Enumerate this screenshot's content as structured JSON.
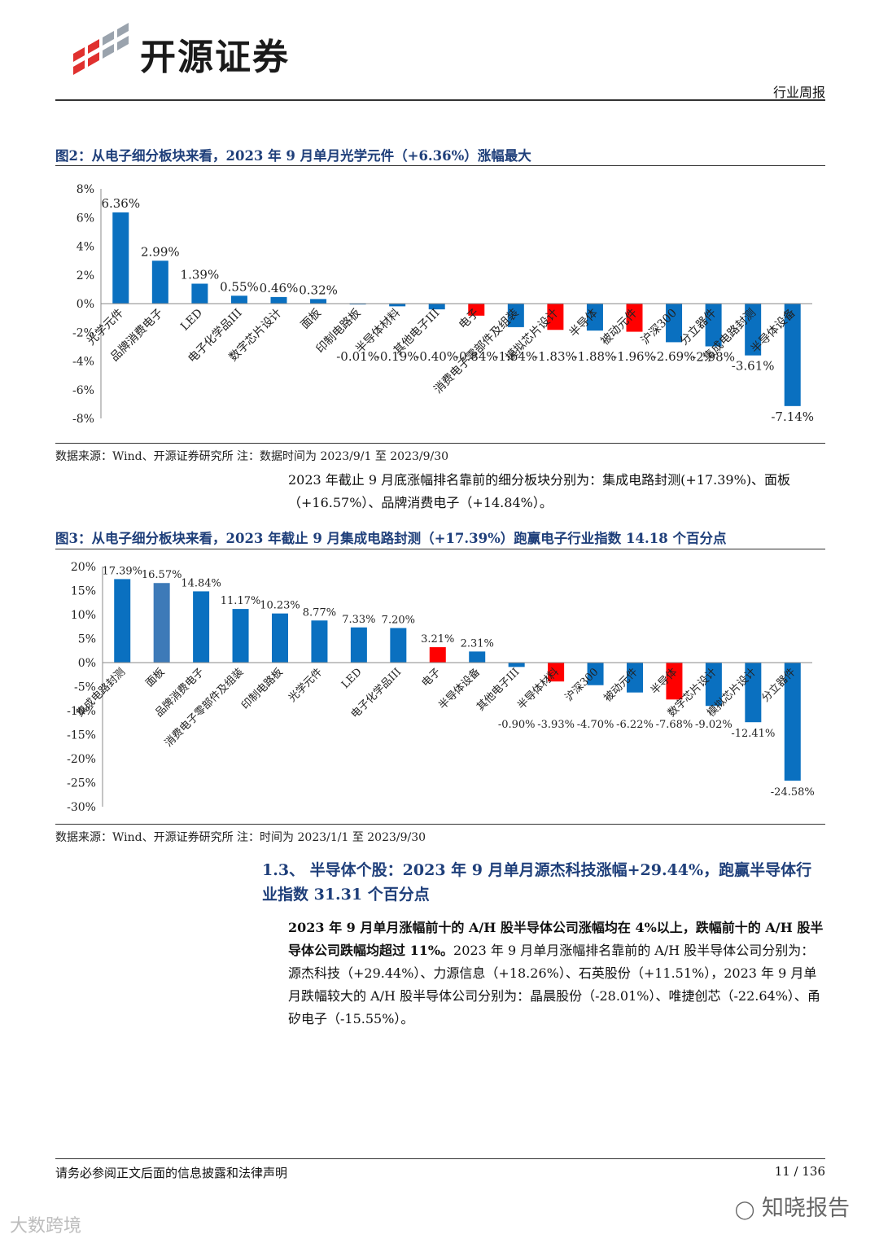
{
  "header": {
    "company": "开源证券",
    "report_type": "行业周报"
  },
  "figure2": {
    "title": "图2：从电子细分板块来看，2023 年 9 月单月光学元件（+6.36%）涨幅最大",
    "source": "数据来源：Wind、开源证券研究所 注：数据时间为 2023/9/1 至 2023/9/30"
  },
  "paragraph1": "2023 年截止 9 月底涨幅排名靠前的细分板块分别为：集成电路封测(+17.39%)、面板（+16.57%）、品牌消费电子（+14.84%）。",
  "figure3": {
    "title": "图3：从电子细分板块来看，2023 年截止 9 月集成电路封测（+17.39%）跑赢电子行业指数 14.18 个百分点",
    "source": "数据来源：Wind、开源证券研究所 注：时间为 2023/1/1 至 2023/9/30"
  },
  "section": {
    "heading": "1.3、 半导体个股：2023 年 9 月单月源杰科技涨幅+29.44%，跑赢半导体行业指数 31.31 个百分点"
  },
  "paragraph2": {
    "bold": "2023 年 9 月单月涨幅前十的 A/H 股半导体公司涨幅均在 4%以上，跌幅前十的 A/H 股半导体公司跌幅均超过 11%。",
    "rest": "2023 年 9 月单月涨幅排名靠前的 A/H 股半导体公司分别为：源杰科技（+29.44%）、力源信息（+18.26%）、石英股份（+11.51%），2023 年 9 月单月跌幅较大的 A/H 股半导体公司分别为：晶晨股份（-28.01%）、唯捷创芯（-22.64%）、甬矽电子（-15.55%）。"
  },
  "footer": {
    "disclaimer": "请务必参阅正文后面的信息披露和法律声明",
    "page": "11 / 136"
  },
  "watermarks": {
    "left": "大数跨境",
    "right": "知晓报告"
  },
  "colors": {
    "bar_blue": "#0a70c0",
    "bar_red": "#ff0000",
    "bar_steel": "#3d7ab8",
    "title_blue": "#1f3f7a"
  },
  "chart_data": [
    {
      "type": "bar",
      "title": "图2：从电子细分板块来看，2023 年 9 月单月光学元件（+6.36%）涨幅最大",
      "categories": [
        "光学元件",
        "品牌消费电子",
        "LED",
        "电子化学品III",
        "数字芯片设计",
        "面板",
        "印制电路板",
        "半导体材料",
        "其他电子III",
        "电子",
        "消费电子零部件及组装",
        "模拟芯片设计",
        "半导体",
        "被动元件",
        "沪深300",
        "分立器件",
        "集成电路封测",
        "半导体设备"
      ],
      "values": [
        6.36,
        2.99,
        1.39,
        0.55,
        0.46,
        0.32,
        -0.01,
        -0.19,
        -0.4,
        -0.84,
        -1.64,
        -1.83,
        -1.88,
        -1.96,
        -2.69,
        -2.98,
        -3.61,
        -7.14
      ],
      "labels": [
        "6.36%",
        "2.99%",
        "1.39%",
        "0.55%",
        "0.46%",
        "0.32%",
        "-0.01%",
        "-0.19%",
        "-0.40%",
        "-0.84%",
        "-1.64%",
        "-1.83%",
        "-1.88%",
        "-1.96%",
        "-2.69%",
        "-2.98%",
        "-3.61%",
        "-7.14%"
      ],
      "highlight": [
        "blue",
        "blue",
        "blue",
        "blue",
        "blue",
        "blue",
        "blue",
        "blue",
        "blue",
        "red",
        "blue",
        "red",
        "blue",
        "red",
        "blue",
        "blue",
        "blue",
        "blue"
      ],
      "ylim": [
        -8,
        8
      ],
      "yticks": [
        "8%",
        "6%",
        "4%",
        "2%",
        "0%",
        "-2%",
        "-4%",
        "-6%",
        "-8%"
      ],
      "ytick_values": [
        8,
        6,
        4,
        2,
        0,
        -2,
        -4,
        -6,
        -8
      ]
    },
    {
      "type": "bar",
      "title": "图3：从电子细分板块来看，2023 年截止 9 月集成电路封测（+17.39%）跑赢电子行业指数 14.18 个百分点",
      "categories": [
        "集成电路封测",
        "面板",
        "品牌消费电子",
        "消费电子零部件及组装",
        "印制电路板",
        "光学元件",
        "LED",
        "电子化学品III",
        "电子",
        "半导体设备",
        "其他电子III",
        "半导体材料",
        "沪深300",
        "被动元件",
        "半导体",
        "数字芯片设计",
        "模拟芯片设计",
        "分立器件"
      ],
      "values": [
        17.39,
        16.57,
        14.84,
        11.17,
        10.23,
        8.77,
        7.33,
        7.2,
        3.21,
        2.31,
        -0.9,
        -3.93,
        -4.7,
        -6.22,
        -7.68,
        -9.02,
        -12.41,
        -24.58
      ],
      "labels": [
        "17.39%",
        "16.57%",
        "14.84%",
        "11.17%",
        "10.23%",
        "8.77%",
        "7.33%",
        "7.20%",
        "3.21%",
        "2.31%",
        "-0.90%",
        "-3.93%",
        "-4.70%",
        "-6.22%",
        "-7.68%",
        "-9.02%",
        "-12.41%",
        "-24.58%"
      ],
      "highlight": [
        "blue",
        "steel",
        "blue",
        "blue",
        "blue",
        "blue",
        "blue",
        "blue",
        "red",
        "blue",
        "blue",
        "red",
        "blue",
        "blue",
        "red",
        "blue",
        "blue",
        "blue"
      ],
      "ylim": [
        -30,
        20
      ],
      "yticks": [
        "20%",
        "15%",
        "10%",
        "5%",
        "0%",
        "-5%",
        "-10%",
        "-15%",
        "-20%",
        "-25%",
        "-30%"
      ],
      "ytick_values": [
        20,
        15,
        10,
        5,
        0,
        -5,
        -10,
        -15,
        -20,
        -25,
        -30
      ]
    }
  ]
}
